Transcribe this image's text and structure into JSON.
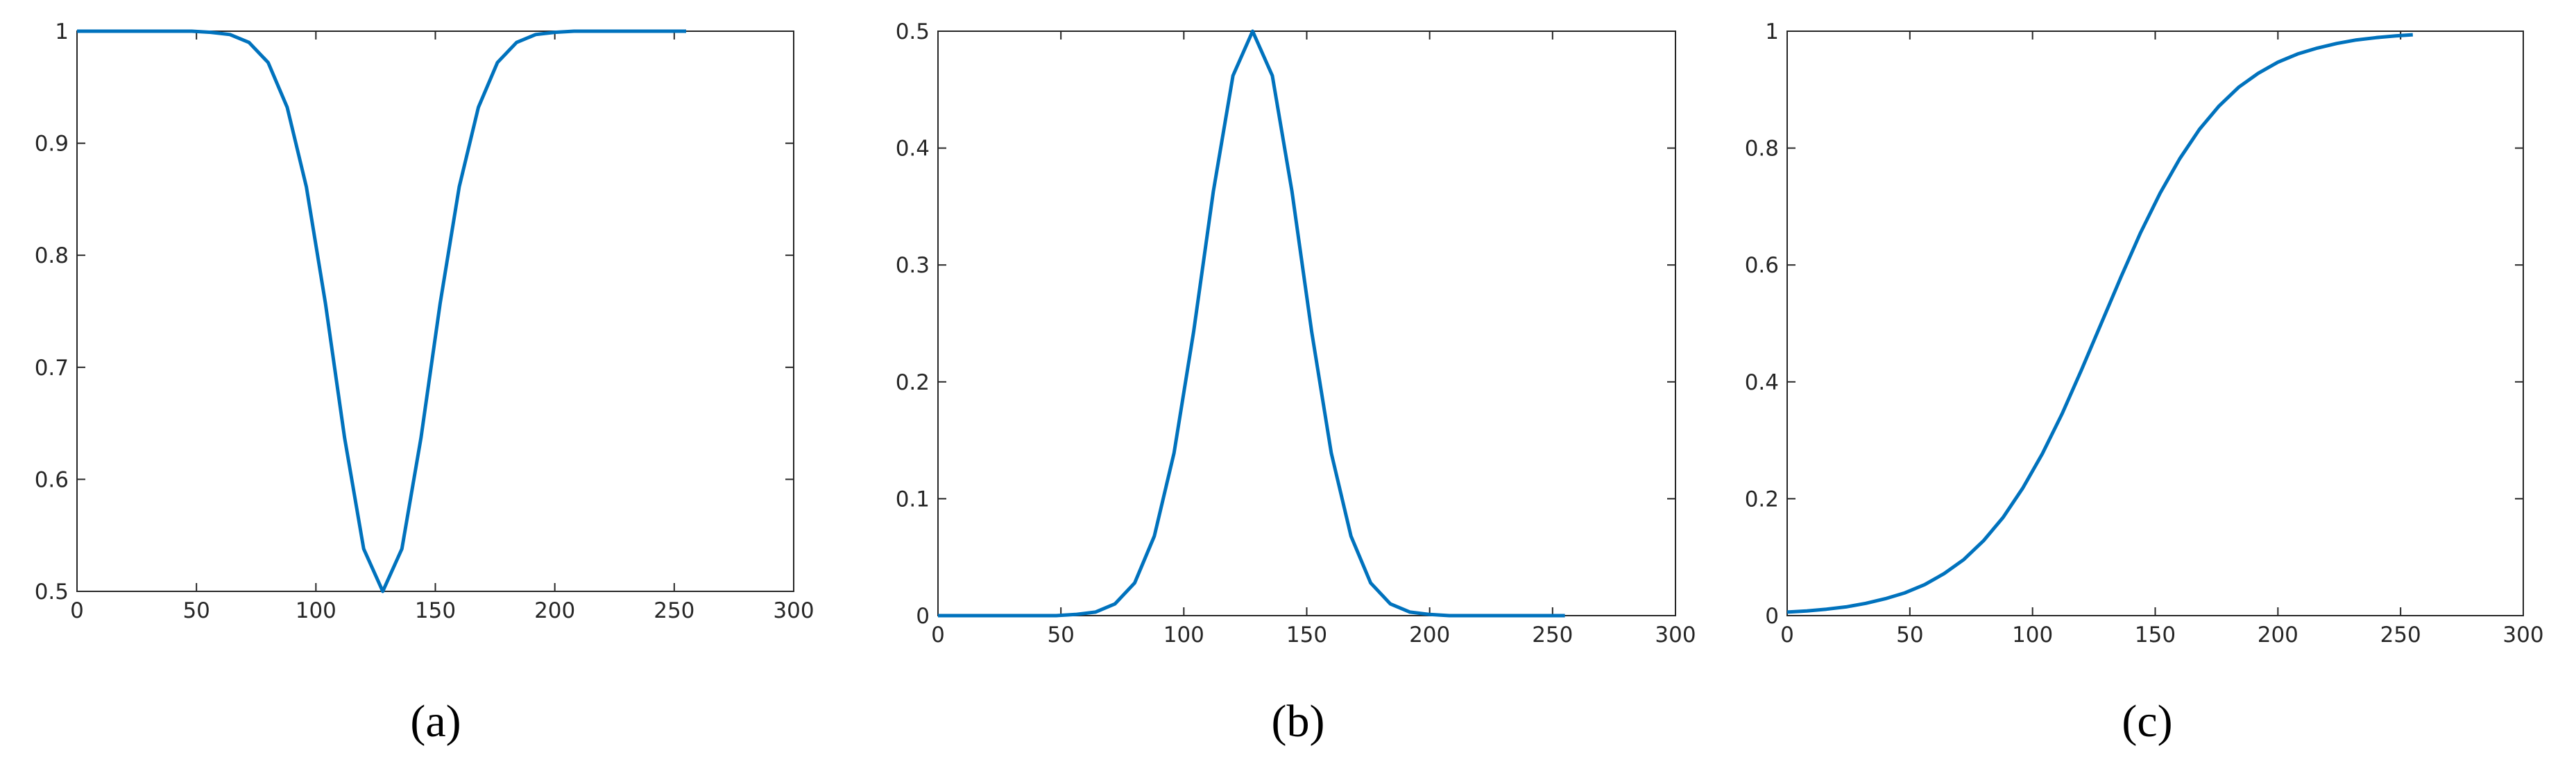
{
  "chart_data": [
    {
      "type": "line",
      "label": "(a)",
      "x": [
        0,
        8,
        16,
        24,
        32,
        40,
        48,
        56,
        64,
        72,
        80,
        88,
        96,
        104,
        112,
        120,
        128,
        136,
        144,
        152,
        160,
        168,
        176,
        184,
        192,
        200,
        208,
        216,
        224,
        232,
        240,
        248,
        255
      ],
      "series": [
        {
          "color": "#0072bd",
          "values": [
            1,
            1,
            1,
            1,
            1,
            1,
            1,
            0.999,
            0.997,
            0.99,
            0.972,
            0.932,
            0.861,
            0.757,
            0.637,
            0.538,
            0.5,
            0.538,
            0.637,
            0.757,
            0.861,
            0.932,
            0.972,
            0.99,
            0.997,
            0.999,
            1,
            1,
            1,
            1,
            1,
            1,
            1
          ]
        }
      ],
      "xlim": [
        0,
        300
      ],
      "xticks": [
        0,
        50,
        100,
        150,
        200,
        250,
        300
      ],
      "ylim": [
        0.5,
        1
      ],
      "yticks": [
        0.5,
        0.6,
        0.7,
        0.8,
        0.9,
        1
      ]
    },
    {
      "type": "line",
      "label": "(b)",
      "x": [
        0,
        8,
        16,
        24,
        32,
        40,
        48,
        56,
        64,
        72,
        80,
        88,
        96,
        104,
        112,
        120,
        128,
        136,
        144,
        152,
        160,
        168,
        176,
        184,
        192,
        200,
        208,
        216,
        224,
        232,
        240,
        248,
        255
      ],
      "series": [
        {
          "color": "#0072bd",
          "values": [
            0,
            0,
            0,
            0,
            0,
            0,
            0,
            0.001,
            0.003,
            0.01,
            0.028,
            0.068,
            0.139,
            0.243,
            0.363,
            0.462,
            0.5,
            0.462,
            0.363,
            0.243,
            0.139,
            0.068,
            0.028,
            0.01,
            0.003,
            0.001,
            0,
            0,
            0,
            0,
            0,
            0,
            0
          ]
        }
      ],
      "xlim": [
        0,
        300
      ],
      "xticks": [
        0,
        50,
        100,
        150,
        200,
        250,
        300
      ],
      "ylim": [
        0,
        0.5
      ],
      "yticks": [
        0,
        0.1,
        0.2,
        0.3,
        0.4,
        0.5
      ]
    },
    {
      "type": "line",
      "label": "(c)",
      "x": [
        0,
        8,
        16,
        24,
        32,
        40,
        48,
        56,
        64,
        72,
        80,
        88,
        96,
        104,
        112,
        120,
        128,
        136,
        144,
        152,
        160,
        168,
        176,
        184,
        192,
        200,
        208,
        216,
        224,
        232,
        240,
        248,
        255
      ],
      "series": [
        {
          "color": "#0072bd",
          "values": [
            0.006,
            0.008,
            0.011,
            0.015,
            0.021,
            0.029,
            0.039,
            0.053,
            0.072,
            0.096,
            0.128,
            0.168,
            0.218,
            0.277,
            0.345,
            0.421,
            0.5,
            0.579,
            0.655,
            0.723,
            0.782,
            0.832,
            0.872,
            0.904,
            0.928,
            0.947,
            0.961,
            0.971,
            0.979,
            0.985,
            0.989,
            0.992,
            0.994
          ]
        }
      ],
      "xlim": [
        0,
        300
      ],
      "xticks": [
        0,
        50,
        100,
        150,
        200,
        250,
        300
      ],
      "ylim": [
        0,
        1
      ],
      "yticks": [
        0,
        0.2,
        0.4,
        0.6,
        0.8,
        1
      ]
    }
  ]
}
